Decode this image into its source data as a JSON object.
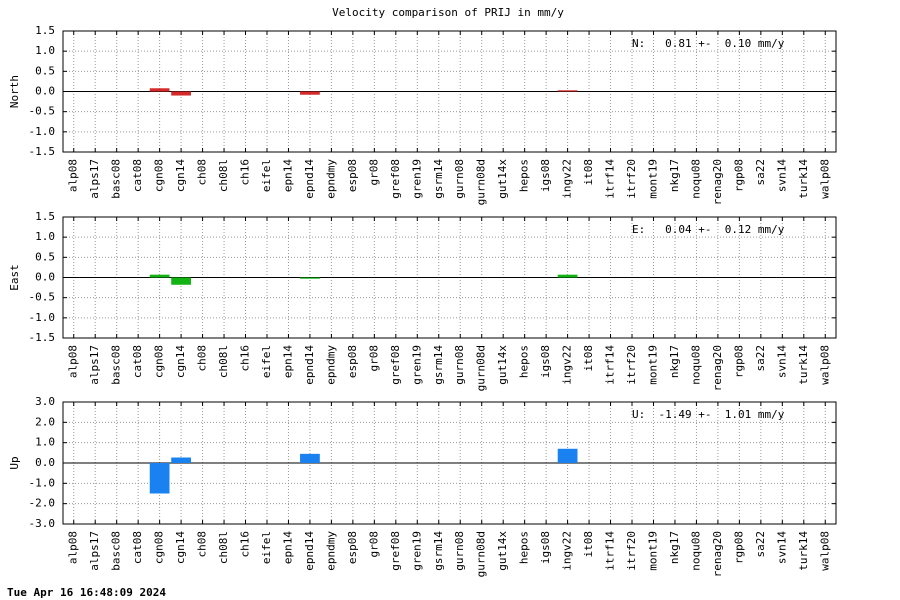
{
  "title": "Velocity comparison of PRIJ in mm/y",
  "timestamp": "Tue Apr 16 16:48:09 2024",
  "chart_data": [
    {
      "type": "bar",
      "ylabel": "North",
      "annotation": "N:   0.81 +-  0.10 mm/y",
      "color": "#d42a2a",
      "categories": [
        "alp08",
        "alps17",
        "basc08",
        "cat08",
        "cgn08",
        "cgn14",
        "ch08",
        "ch08l",
        "ch16",
        "eifel",
        "epn14",
        "epnd14",
        "epndmy",
        "esp08",
        "gr08",
        "gref08",
        "gren19",
        "gsrm14",
        "gurn08",
        "gurn08d",
        "gut14x",
        "hepos",
        "igs08",
        "ingv22",
        "it08",
        "itrf14",
        "itrf20",
        "mont19",
        "nkg17",
        "noqu08",
        "renag20",
        "rgp08",
        "sa22",
        "svn14",
        "turk14",
        "walp08"
      ],
      "values": [
        null,
        null,
        null,
        null,
        0.08,
        -0.1,
        null,
        null,
        null,
        null,
        null,
        -0.08,
        null,
        null,
        null,
        null,
        null,
        null,
        null,
        null,
        null,
        null,
        null,
        0.03,
        null,
        null,
        null,
        null,
        null,
        null,
        null,
        null,
        null,
        null,
        null,
        null
      ],
      "ylim": [
        -1.5,
        1.5
      ],
      "yticks": [
        1.5,
        {
          "value": 1,
          "label": "1.0"
        },
        0.5,
        {
          "value": 0,
          "label": "0.0"
        },
        -0.5,
        {
          "value": -1,
          "label": "-1.0"
        },
        -1.5
      ],
      "grid": true
    },
    {
      "type": "bar",
      "ylabel": "East",
      "annotation": "E:   0.04 +-  0.12 mm/y",
      "color": "#12b312",
      "categories": [
        "alp08",
        "alps17",
        "basc08",
        "cat08",
        "cgn08",
        "cgn14",
        "ch08",
        "ch08l",
        "ch16",
        "eifel",
        "epn14",
        "epnd14",
        "epndmy",
        "esp08",
        "gr08",
        "gref08",
        "gren19",
        "gsrm14",
        "gurn08",
        "gurn08d",
        "gut14x",
        "hepos",
        "igs08",
        "ingv22",
        "it08",
        "itrf14",
        "itrf20",
        "mont19",
        "nkg17",
        "noqu08",
        "renag20",
        "rgp08",
        "sa22",
        "svn14",
        "turk14",
        "walp08"
      ],
      "values": [
        null,
        null,
        null,
        null,
        0.07,
        -0.18,
        null,
        null,
        null,
        null,
        null,
        -0.03,
        null,
        null,
        null,
        null,
        null,
        null,
        null,
        null,
        null,
        null,
        null,
        0.07,
        null,
        null,
        null,
        null,
        null,
        null,
        null,
        null,
        null,
        null,
        null,
        null
      ],
      "ylim": [
        -1.5,
        1.5
      ],
      "yticks": [
        1.5,
        {
          "value": 1,
          "label": "1.0"
        },
        0.5,
        {
          "value": 0,
          "label": "0.0"
        },
        -0.5,
        {
          "value": -1,
          "label": "-1.0"
        },
        -1.5
      ],
      "grid": true
    },
    {
      "type": "bar",
      "ylabel": "Up",
      "annotation": "U:  -1.49 +-  1.01 mm/y",
      "color": "#1a82f0",
      "categories": [
        "alp08",
        "alps17",
        "basc08",
        "cat08",
        "cgn08",
        "cgn14",
        "ch08",
        "ch08l",
        "ch16",
        "eifel",
        "epn14",
        "epnd14",
        "epndmy",
        "esp08",
        "gr08",
        "gref08",
        "gren19",
        "gsrm14",
        "gurn08",
        "gurn08d",
        "gut14x",
        "hepos",
        "igs08",
        "ingv22",
        "it08",
        "itrf14",
        "itrf20",
        "mont19",
        "nkg17",
        "noqu08",
        "renag20",
        "rgp08",
        "sa22",
        "svn14",
        "turk14",
        "walp08"
      ],
      "values": [
        null,
        null,
        null,
        null,
        -1.5,
        0.27,
        null,
        null,
        null,
        null,
        null,
        0.45,
        null,
        null,
        null,
        null,
        null,
        null,
        null,
        null,
        null,
        null,
        null,
        0.7,
        null,
        null,
        null,
        null,
        null,
        null,
        null,
        null,
        null,
        null,
        null,
        null
      ],
      "ylim": [
        -3,
        3
      ],
      "yticks": [
        {
          "value": 3,
          "label": "3.0"
        },
        {
          "value": 2,
          "label": "2.0"
        },
        {
          "value": 1,
          "label": "1.0"
        },
        {
          "value": 0,
          "label": "0.0"
        },
        {
          "value": -1,
          "label": "-1.0"
        },
        {
          "value": -2,
          "label": "-2.0"
        },
        {
          "value": -3,
          "label": "-3.0"
        }
      ],
      "grid": true
    }
  ]
}
